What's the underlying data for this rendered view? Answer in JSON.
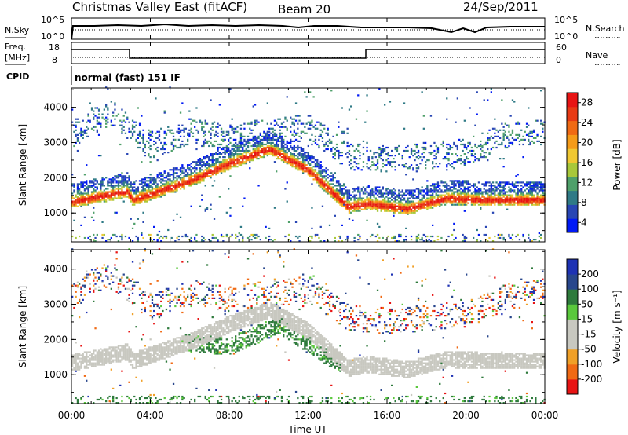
{
  "header": {
    "title": "Christmas Valley East (fitACF)",
    "beam": "Beam 20",
    "date": "24/Sep/2011"
  },
  "strips": {
    "nsky_label": "N.Sky",
    "nsky_ticks": [
      "10^5",
      "10^0"
    ],
    "nsearch_label": "N.Search",
    "nsearch_ticks": [
      "10^5",
      "10^0"
    ],
    "freq_label_line1": "Freq.",
    "freq_label_line2": "[MHz]",
    "freq_ticks": [
      "18",
      "8"
    ],
    "nave_label": "Nave",
    "nave_ticks": [
      "60",
      "0"
    ],
    "cpid_label": "CPID",
    "cpid_value": "normal (fast) 151 IF"
  },
  "xaxis": {
    "label": "Time UT",
    "ticks": [
      "00:00",
      "04:00",
      "08:00",
      "12:00",
      "16:00",
      "20:00",
      "00:00"
    ]
  },
  "power_panel": {
    "ylabel": "Slant Range [km]",
    "yticks": [
      "1000",
      "2000",
      "3000",
      "4000"
    ],
    "colorbar_label": "Power [dB]",
    "colorbar_ticks": [
      "4",
      "8",
      "12",
      "16",
      "20",
      "24",
      "28"
    ],
    "colorbar_colors": [
      "#0019f5",
      "#2846b4",
      "#2f7a86",
      "#4fa06a",
      "#a8c83a",
      "#f0c832",
      "#f59b19",
      "#f06a14",
      "#e83a14",
      "#e81414"
    ]
  },
  "velocity_panel": {
    "ylabel": "Slant Range [km]",
    "yticks": [
      "1000",
      "2000",
      "3000",
      "4000"
    ],
    "colorbar_label": "Velocity [m s⁻¹]",
    "colorbar_ticks": [
      "200",
      "100",
      "50",
      "15",
      "-15",
      "-50",
      "-100",
      "-200"
    ],
    "colorbar_colors": [
      "#1e32b4",
      "#28468c",
      "#2e7a3c",
      "#5ac83c",
      "#c8c8c0",
      "#c8c8c0",
      "#f0a028",
      "#f06a14",
      "#e81414"
    ]
  },
  "chart_data": [
    {
      "type": "heatmap",
      "title": "Power [dB]",
      "xlabel": "Time UT",
      "ylabel": "Slant Range [km]",
      "xlim": [
        0,
        24
      ],
      "ylim": [
        180,
        4550
      ],
      "value_range": [
        2,
        30
      ],
      "features": [
        {
          "name": "dense band",
          "t": [
            0,
            2.8,
            3.1,
            6,
            8,
            10,
            12,
            14,
            15,
            17,
            19,
            21,
            24
          ],
          "range": [
            1300,
            1600,
            1350,
            1900,
            2400,
            2800,
            2200,
            1150,
            1250,
            1100,
            1400,
            1350,
            1350
          ],
          "power": 26
        },
        {
          "name": "upper echoes",
          "t": [
            0,
            1,
            2,
            4,
            6,
            8,
            10,
            12,
            14,
            16,
            18,
            20,
            22,
            24
          ],
          "range": [
            3200,
            3600,
            3800,
            2900,
            3300,
            3100,
            3300,
            3400,
            2600,
            2500,
            2600,
            2700,
            3200,
            3300
          ],
          "power": 8
        }
      ]
    },
    {
      "type": "heatmap",
      "title": "Velocity [m s⁻¹]",
      "xlabel": "Time UT",
      "ylabel": "Slant Range [km]",
      "xlim": [
        0,
        24
      ],
      "ylim": [
        180,
        4550
      ],
      "value_range": [
        -200,
        200
      ],
      "features": [
        {
          "name": "ground scatter band",
          "t": [
            0,
            3,
            6,
            9,
            12,
            15,
            18,
            21,
            24
          ],
          "range": [
            1400,
            1500,
            1900,
            2700,
            2500,
            1400,
            1500,
            1500,
            1500
          ],
          "velocity": 0
        },
        {
          "name": "positive velocity patch",
          "t": [
            5.5,
            8,
            10.5,
            13.5
          ],
          "range": [
            1900,
            1800,
            2400,
            1300
          ],
          "velocity": 40
        }
      ]
    }
  ]
}
